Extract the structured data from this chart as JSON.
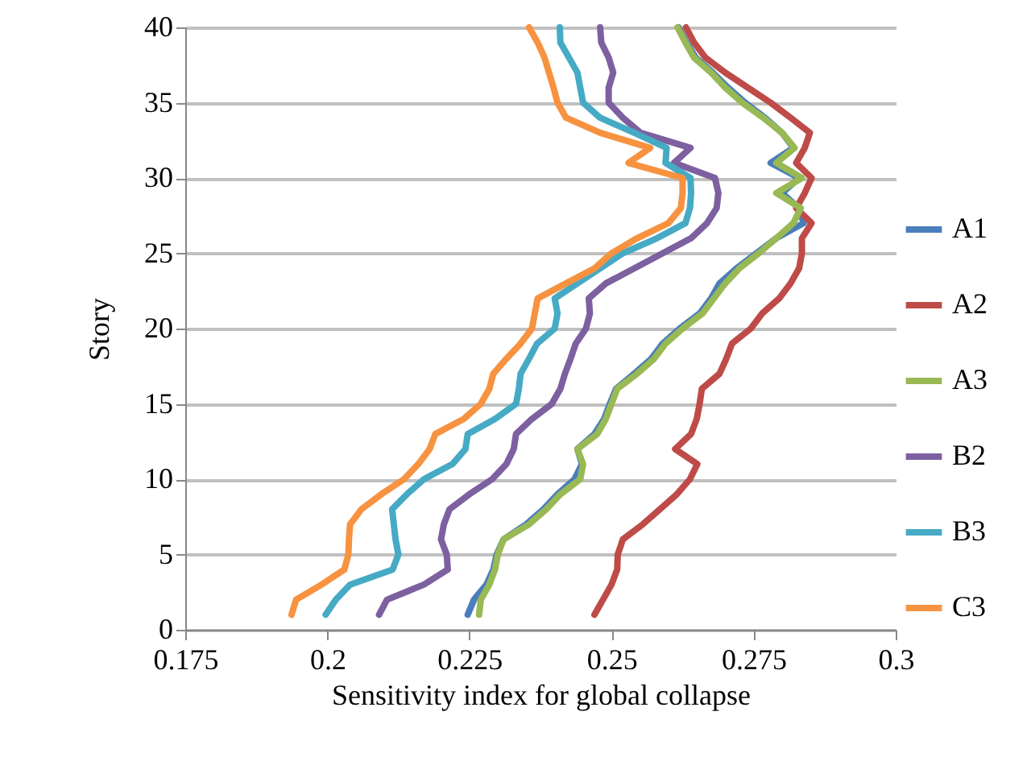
{
  "chart_data": {
    "type": "line",
    "xlabel": "Sensitivity index for global collapse",
    "ylabel": "Story",
    "xlim": [
      0.175,
      0.3
    ],
    "ylim": [
      0,
      40
    ],
    "xticks": [
      0.175,
      0.2,
      0.225,
      0.25,
      0.275,
      0.3
    ],
    "yticks": [
      0,
      5,
      10,
      15,
      20,
      25,
      30,
      35,
      40
    ],
    "grid": "y",
    "legend": "right",
    "series": [
      {
        "name": "A1",
        "color": "#4a7ebb",
        "x": [
          0.2247,
          0.2258,
          0.228,
          0.2292,
          0.2298,
          0.231,
          0.235,
          0.238,
          0.2405,
          0.2435,
          0.2448,
          0.244,
          0.247,
          0.2487,
          0.2497,
          0.2508,
          0.254,
          0.257,
          0.259,
          0.262,
          0.2655,
          0.2675,
          0.269,
          0.272,
          0.2755,
          0.279,
          0.2838,
          0.283,
          0.28,
          0.283,
          0.278,
          0.282,
          0.28,
          0.277,
          0.2735,
          0.2705,
          0.2678,
          0.2648,
          0.2632,
          0.2618
        ],
        "values": [
          1,
          2,
          3,
          4,
          5,
          6,
          7,
          8,
          9,
          10,
          11,
          12,
          13,
          14,
          15,
          16,
          17,
          18,
          19,
          20,
          21,
          22,
          23,
          24,
          25,
          26,
          27,
          28,
          29,
          30,
          31,
          32,
          33,
          34,
          35,
          36,
          37,
          38,
          39,
          40
        ]
      },
      {
        "name": "A2",
        "color": "#be4b48",
        "x": [
          0.247,
          0.2485,
          0.25,
          0.251,
          0.2511,
          0.252,
          0.2555,
          0.2585,
          0.2615,
          0.2638,
          0.2651,
          0.2612,
          0.264,
          0.265,
          0.2655,
          0.2659,
          0.269,
          0.2702,
          0.2712,
          0.2745,
          0.2765,
          0.2795,
          0.2815,
          0.283,
          0.2835,
          0.2835,
          0.2852,
          0.2825,
          0.284,
          0.2852,
          0.2825,
          0.284,
          0.2849,
          0.2815,
          0.278,
          0.274,
          0.27,
          0.2665,
          0.2645,
          0.2631
        ],
        "values": [
          1,
          2,
          3,
          4,
          5,
          6,
          7,
          8,
          9,
          10,
          11,
          12,
          13,
          14,
          15,
          16,
          17,
          18,
          19,
          20,
          21,
          22,
          23,
          24,
          25,
          26,
          27,
          28,
          29,
          30,
          31,
          32,
          33,
          34,
          35,
          36,
          37,
          38,
          39,
          40
        ]
      },
      {
        "name": "A3",
        "color": "#98b954",
        "x": [
          0.2267,
          0.227,
          0.2285,
          0.2295,
          0.23,
          0.231,
          0.2355,
          0.2385,
          0.241,
          0.2445,
          0.245,
          0.244,
          0.2475,
          0.249,
          0.25,
          0.251,
          0.2545,
          0.2575,
          0.2595,
          0.2625,
          0.266,
          0.268,
          0.27,
          0.2725,
          0.2759,
          0.279,
          0.282,
          0.2833,
          0.279,
          0.2835,
          0.279,
          0.2822,
          0.28,
          0.2767,
          0.273,
          0.27,
          0.2675,
          0.2645,
          0.263,
          0.2616
        ],
        "values": [
          1,
          2,
          3,
          4,
          5,
          6,
          7,
          8,
          9,
          10,
          11,
          12,
          13,
          14,
          15,
          16,
          17,
          18,
          19,
          20,
          21,
          22,
          23,
          24,
          25,
          26,
          27,
          28,
          29,
          30,
          31,
          32,
          33,
          34,
          35,
          36,
          37,
          38,
          39,
          40
        ]
      },
      {
        "name": "B2",
        "color": "#7d60a0",
        "x": [
          0.2091,
          0.2105,
          0.217,
          0.2212,
          0.221,
          0.22,
          0.2205,
          0.2215,
          0.225,
          0.229,
          0.2315,
          0.2328,
          0.2332,
          0.236,
          0.2395,
          0.241,
          0.2418,
          0.2428,
          0.2437,
          0.2455,
          0.2462,
          0.246,
          0.249,
          0.254,
          0.259,
          0.264,
          0.2668,
          0.2685,
          0.2688,
          0.2682,
          0.261,
          0.2639,
          0.2551,
          0.252,
          0.2495,
          0.2495,
          0.2503,
          0.2495,
          0.2482,
          0.248
        ],
        "values": [
          1,
          2,
          3,
          4,
          5,
          6,
          7,
          8,
          9,
          10,
          11,
          12,
          13,
          14,
          15,
          16,
          17,
          18,
          19,
          20,
          21,
          22,
          23,
          24,
          25,
          26,
          27,
          28,
          29,
          30,
          31,
          32,
          33,
          34,
          35,
          36,
          37,
          38,
          39,
          40
        ]
      },
      {
        "name": "B3",
        "color": "#46aac5",
        "x": [
          0.1997,
          0.2015,
          0.204,
          0.2115,
          0.2125,
          0.212,
          0.2117,
          0.2114,
          0.214,
          0.217,
          0.222,
          0.2243,
          0.2247,
          0.2295,
          0.2332,
          0.2337,
          0.234,
          0.2355,
          0.2369,
          0.24,
          0.2405,
          0.24,
          0.244,
          0.248,
          0.252,
          0.258,
          0.263,
          0.2638,
          0.264,
          0.2639,
          0.2595,
          0.2597,
          0.254,
          0.248,
          0.245,
          0.2445,
          0.244,
          0.2425,
          0.241,
          0.2409
        ],
        "values": [
          1,
          2,
          3,
          4,
          5,
          6,
          7,
          8,
          9,
          10,
          11,
          12,
          13,
          14,
          15,
          16,
          17,
          18,
          19,
          20,
          21,
          22,
          23,
          24,
          25,
          26,
          27,
          28,
          29,
          30,
          31,
          32,
          33,
          34,
          35,
          36,
          37,
          38,
          39,
          40
        ]
      },
      {
        "name": "C3",
        "color": "#f69240",
        "x": [
          0.1937,
          0.1945,
          0.199,
          0.203,
          0.2037,
          0.2038,
          0.204,
          0.206,
          0.2095,
          0.2135,
          0.216,
          0.218,
          0.219,
          0.224,
          0.227,
          0.2285,
          0.2292,
          0.2315,
          0.234,
          0.236,
          0.2365,
          0.237,
          0.242,
          0.247,
          0.25,
          0.2545,
          0.26,
          0.2622,
          0.2625,
          0.2625,
          0.253,
          0.2568,
          0.248,
          0.242,
          0.2405,
          0.2398,
          0.239,
          0.2382,
          0.237,
          0.2355
        ],
        "values": [
          1,
          2,
          3,
          4,
          5,
          6,
          7,
          8,
          9,
          10,
          11,
          12,
          13,
          14,
          15,
          16,
          17,
          18,
          19,
          20,
          21,
          22,
          23,
          24,
          25,
          26,
          27,
          28,
          29,
          30,
          31,
          32,
          33,
          34,
          35,
          36,
          37,
          38,
          39,
          40
        ]
      }
    ]
  }
}
